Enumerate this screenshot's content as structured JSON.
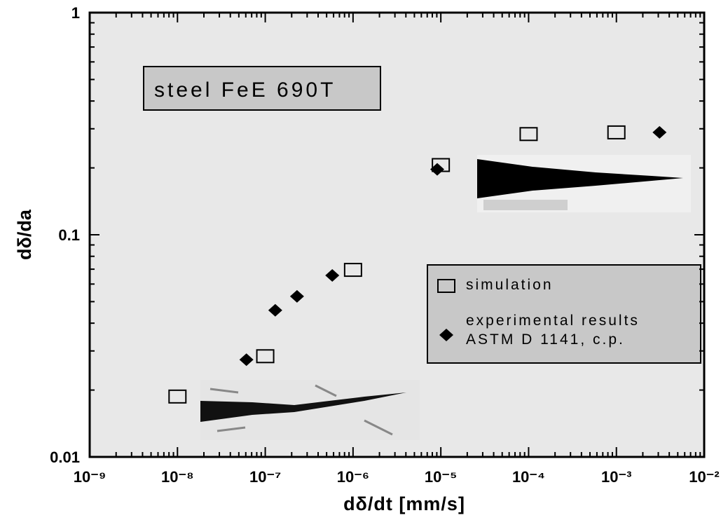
{
  "chart_data": {
    "type": "scatter",
    "x_label": "dδ/dt [mm/s]",
    "y_label": "dδ/da",
    "annotation": "steel FeE 690T",
    "xlog": true,
    "ylog": true,
    "xlim": [
      1e-09,
      0.01
    ],
    "ylim": [
      0.01,
      1
    ],
    "xticks": [
      {
        "value": 1e-09,
        "label": "10⁻⁹"
      },
      {
        "value": 1e-08,
        "label": "10⁻⁸"
      },
      {
        "value": 1e-07,
        "label": "10⁻⁷"
      },
      {
        "value": 1e-06,
        "label": "10⁻⁶"
      },
      {
        "value": 1e-05,
        "label": "10⁻⁵"
      },
      {
        "value": 0.0001,
        "label": "10⁻⁴"
      },
      {
        "value": 0.001,
        "label": "10⁻³"
      },
      {
        "value": 0.01,
        "label": "10⁻²"
      }
    ],
    "yticks": [
      0.01,
      0.1,
      1
    ],
    "legend": "lower-right",
    "series": [
      {
        "name": "simulation",
        "color": "#000000",
        "marker": "square",
        "x": [
          1e-08,
          1e-07,
          1e-06,
          1e-05,
          0.0001,
          0.001
        ],
        "values": [
          0.0187,
          0.0284,
          0.0695,
          0.206,
          0.284,
          0.289
        ]
      },
      {
        "name": "experimental results ASTM D 1141, c.p.",
        "color": "#000000",
        "marker": "diamond",
        "x": [
          6.1e-08,
          1.3e-07,
          2.3e-07,
          5.8e-07,
          9.1e-06,
          0.0031
        ],
        "values": [
          0.0274,
          0.0457,
          0.0528,
          0.0656,
          0.197,
          0.289
        ]
      }
    ]
  }
}
